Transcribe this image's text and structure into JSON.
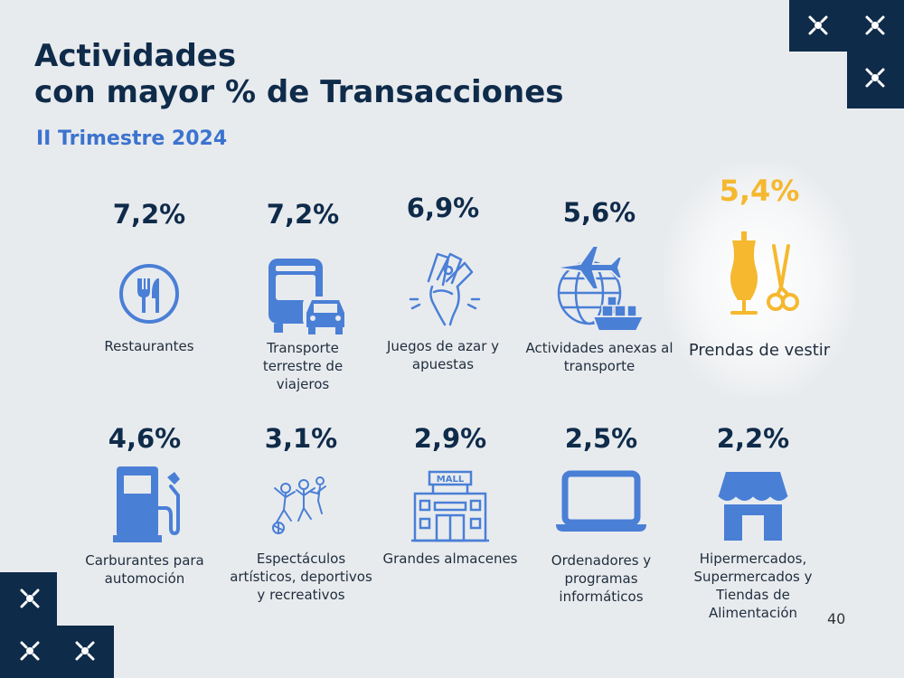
{
  "header": {
    "title_line1": "Actividades",
    "title_line2": "con mayor % de Transacciones",
    "subtitle": "II Trimestre 2024"
  },
  "page_number": "40",
  "colors": {
    "navy": "#0f2b4a",
    "blue": "#3c73cf",
    "icon_blue": "#4a7fd6",
    "highlight": "#f5b82e",
    "background": "#e8ebee"
  },
  "activities": [
    {
      "pct": "7,2%",
      "label": "Restaurantes",
      "icon": "fork-knife-icon"
    },
    {
      "pct": "7,2%",
      "label": "Transporte terrestre de viajeros",
      "icon": "bus-car-icon"
    },
    {
      "pct": "6,9%",
      "label": "Juegos de azar y apuestas",
      "icon": "money-hand-icon"
    },
    {
      "pct": "5,6%",
      "label": "Actividades anexas al transporte",
      "icon": "globe-plane-ship-icon"
    },
    {
      "pct": "5,4%",
      "label": "Prendas de vestir",
      "icon": "mannequin-scissors-icon",
      "highlighted": true
    },
    {
      "pct": "4,6%",
      "label": "Carburantes para automoción",
      "icon": "fuel-pump-icon"
    },
    {
      "pct": "3,1%",
      "label": "Espectáculos artísticos, deportivos y recreativos",
      "icon": "people-celebrating-icon"
    },
    {
      "pct": "2,9%",
      "label": "Grandes almacenes",
      "icon": "mall-building-icon"
    },
    {
      "pct": "2,5%",
      "label": "Ordenadores y programas informáticos",
      "icon": "laptop-icon"
    },
    {
      "pct": "2,2%",
      "label": "Hipermercados, Supermercados y Tiendas de Alimentación",
      "icon": "store-awning-icon"
    }
  ]
}
